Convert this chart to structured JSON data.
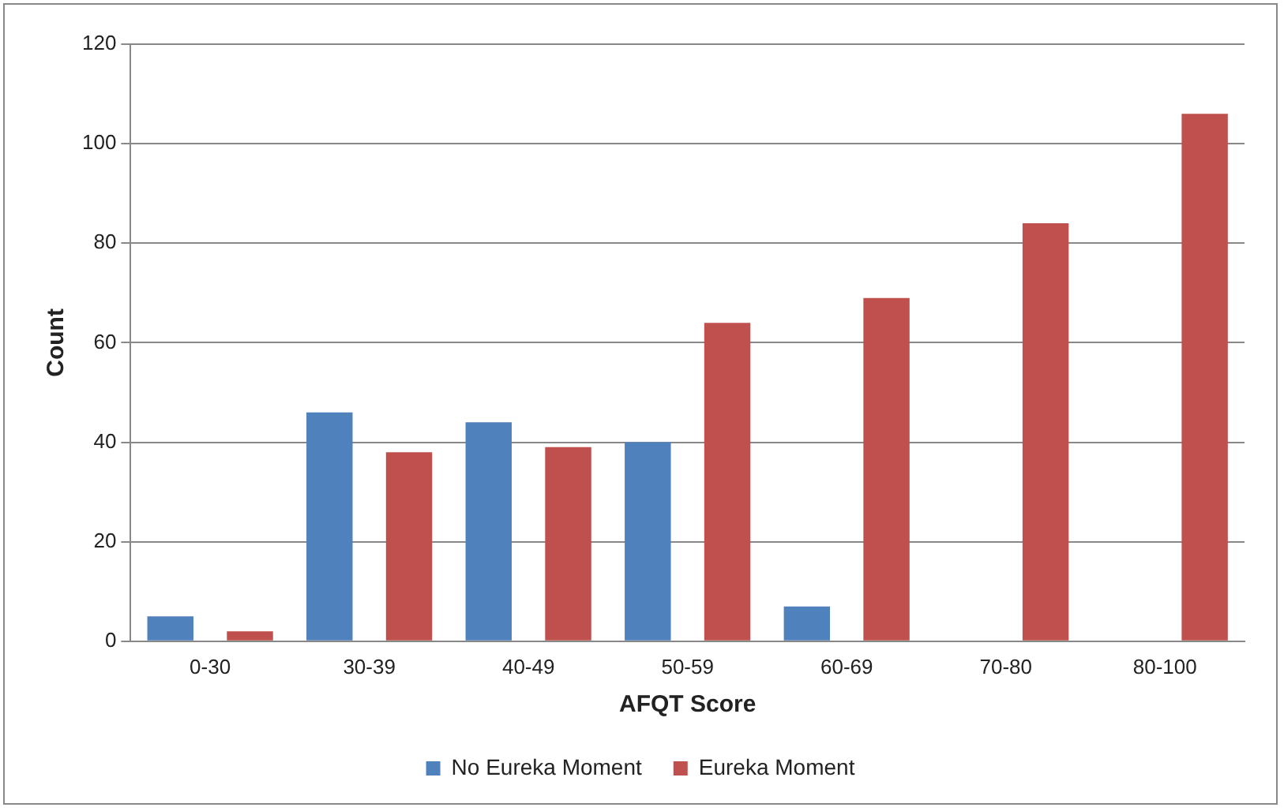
{
  "chart_data": {
    "type": "bar",
    "xlabel": "AFQT Score",
    "ylabel": "Count",
    "categories": [
      "0-30",
      "30-39",
      "40-49",
      "50-59",
      "60-69",
      "70-80",
      "80-100"
    ],
    "series": [
      {
        "name": "No Eureka Moment",
        "color": "#4f81bd",
        "values": [
          5,
          46,
          44,
          40,
          7,
          0,
          0
        ]
      },
      {
        "name": "Eureka Moment",
        "color": "#c0504d",
        "values": [
          2,
          38,
          39,
          64,
          69,
          84,
          106
        ]
      }
    ],
    "ylim": [
      0,
      120
    ],
    "yticks": [
      0,
      20,
      40,
      60,
      80,
      100,
      120
    ],
    "grid": "y",
    "legend": "bottom"
  }
}
